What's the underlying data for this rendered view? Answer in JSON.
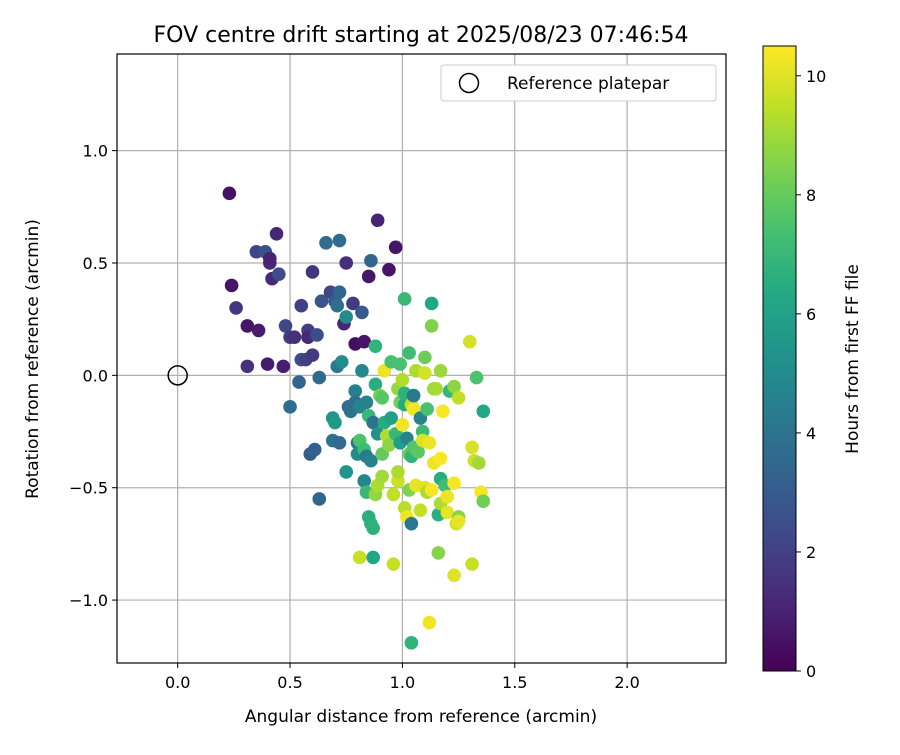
{
  "chart_data": {
    "type": "scatter",
    "title": "FOV centre drift starting at 2025/08/23 07:46:54",
    "xlabel": "Angular distance from reference (arcmin)",
    "ylabel": "Rotation from reference (arcmin)",
    "xlim": [
      -0.27,
      2.44
    ],
    "ylim": [
      -1.28,
      1.43
    ],
    "xticks": [
      0.0,
      0.5,
      1.0,
      1.5,
      2.0
    ],
    "xtick_labels": [
      "0.0",
      "0.5",
      "1.0",
      "1.5",
      "2.0"
    ],
    "yticks": [
      -1.0,
      -0.5,
      0.0,
      0.5,
      1.0
    ],
    "ytick_labels": [
      "−1.0",
      "−0.5",
      "0.0",
      "0.5",
      "1.0"
    ],
    "grid": true,
    "legend": {
      "position": "top-right",
      "entries": [
        "Reference platepar"
      ]
    },
    "reference_point": {
      "x": 0.0,
      "y": 0.0,
      "marker": "open-circle",
      "color": "#000000"
    },
    "colorbar": {
      "label": "Hours from first FF file",
      "colormap": "viridis",
      "range": [
        0,
        10.5
      ],
      "ticks": [
        0,
        2,
        4,
        6,
        8,
        10
      ],
      "tick_labels": [
        "0",
        "2",
        "4",
        "6",
        "8",
        "10"
      ]
    },
    "points": [
      {
        "x": 0.23,
        "y": 0.81,
        "h": 0.5
      },
      {
        "x": 0.24,
        "y": 0.4,
        "h": 0.6
      },
      {
        "x": 0.26,
        "y": 0.3,
        "h": 1.6
      },
      {
        "x": 0.31,
        "y": 0.22,
        "h": 0.6
      },
      {
        "x": 0.31,
        "y": 0.04,
        "h": 1.5
      },
      {
        "x": 0.35,
        "y": 0.55,
        "h": 2.1
      },
      {
        "x": 0.36,
        "y": 0.2,
        "h": 0.8
      },
      {
        "x": 0.39,
        "y": 0.55,
        "h": 2.6
      },
      {
        "x": 0.4,
        "y": 0.05,
        "h": 0.8
      },
      {
        "x": 0.41,
        "y": 0.5,
        "h": 1.2
      },
      {
        "x": 0.41,
        "y": 0.52,
        "h": 1.0
      },
      {
        "x": 0.42,
        "y": 0.43,
        "h": 1.2
      },
      {
        "x": 0.44,
        "y": 0.63,
        "h": 1.1
      },
      {
        "x": 0.45,
        "y": 0.45,
        "h": 2.4
      },
      {
        "x": 0.47,
        "y": 0.04,
        "h": 0.9
      },
      {
        "x": 0.48,
        "y": 0.22,
        "h": 2.2
      },
      {
        "x": 0.5,
        "y": 0.17,
        "h": 1.8
      },
      {
        "x": 0.5,
        "y": -0.14,
        "h": 3.7
      },
      {
        "x": 0.52,
        "y": 0.17,
        "h": 1.4
      },
      {
        "x": 0.54,
        "y": -0.03,
        "h": 3.4
      },
      {
        "x": 0.55,
        "y": 0.31,
        "h": 2.0
      },
      {
        "x": 0.55,
        "y": 0.07,
        "h": 2.6
      },
      {
        "x": 0.57,
        "y": 0.07,
        "h": 2.0
      },
      {
        "x": 0.58,
        "y": 0.2,
        "h": 1.9
      },
      {
        "x": 0.58,
        "y": 0.17,
        "h": 1.2
      },
      {
        "x": 0.59,
        "y": -0.35,
        "h": 3.0
      },
      {
        "x": 0.6,
        "y": 0.09,
        "h": 1.7
      },
      {
        "x": 0.6,
        "y": 0.46,
        "h": 1.6
      },
      {
        "x": 0.61,
        "y": -0.33,
        "h": 3.2
      },
      {
        "x": 0.62,
        "y": 0.18,
        "h": 2.5
      },
      {
        "x": 0.63,
        "y": -0.55,
        "h": 3.5
      },
      {
        "x": 0.63,
        "y": -0.01,
        "h": 3.6
      },
      {
        "x": 0.64,
        "y": 0.33,
        "h": 2.8
      },
      {
        "x": 0.66,
        "y": 0.59,
        "h": 3.7
      },
      {
        "x": 0.68,
        "y": 0.37,
        "h": 2.2
      },
      {
        "x": 0.69,
        "y": -0.19,
        "h": 5.4
      },
      {
        "x": 0.69,
        "y": -0.29,
        "h": 4.0
      },
      {
        "x": 0.7,
        "y": -0.21,
        "h": 5.6
      },
      {
        "x": 0.7,
        "y": 0.33,
        "h": 3.0
      },
      {
        "x": 0.71,
        "y": 0.31,
        "h": 3.8
      },
      {
        "x": 0.71,
        "y": 0.04,
        "h": 4.2
      },
      {
        "x": 0.72,
        "y": 0.37,
        "h": 3.5
      },
      {
        "x": 0.72,
        "y": -0.3,
        "h": 3.6
      },
      {
        "x": 0.72,
        "y": 0.6,
        "h": 3.7
      },
      {
        "x": 0.73,
        "y": 0.06,
        "h": 5.1
      },
      {
        "x": 0.74,
        "y": 0.23,
        "h": 1.1
      },
      {
        "x": 0.75,
        "y": 0.26,
        "h": 5.0
      },
      {
        "x": 0.75,
        "y": -0.43,
        "h": 5.4
      },
      {
        "x": 0.75,
        "y": 0.5,
        "h": 1.4
      },
      {
        "x": 0.76,
        "y": -0.14,
        "h": 3.7
      },
      {
        "x": 0.77,
        "y": -0.16,
        "h": 4.0
      },
      {
        "x": 0.78,
        "y": 0.32,
        "h": 1.8
      },
      {
        "x": 0.79,
        "y": -0.07,
        "h": 4.5
      },
      {
        "x": 0.79,
        "y": -0.12,
        "h": 3.8
      },
      {
        "x": 0.79,
        "y": 0.14,
        "h": 0.4
      },
      {
        "x": 0.8,
        "y": -0.3,
        "h": 4.2
      },
      {
        "x": 0.8,
        "y": -0.35,
        "h": 5.0
      },
      {
        "x": 0.81,
        "y": -0.81,
        "h": 9.6
      },
      {
        "x": 0.81,
        "y": -0.29,
        "h": 7.5
      },
      {
        "x": 0.81,
        "y": -0.14,
        "h": 4.7
      },
      {
        "x": 0.82,
        "y": 0.28,
        "h": 3.0
      },
      {
        "x": 0.82,
        "y": 0.02,
        "h": 4.8
      },
      {
        "x": 0.83,
        "y": -0.47,
        "h": 4.8
      },
      {
        "x": 0.83,
        "y": 0.15,
        "h": 0.6
      },
      {
        "x": 0.83,
        "y": -0.33,
        "h": 7.2
      },
      {
        "x": 0.84,
        "y": -0.52,
        "h": 7.0
      },
      {
        "x": 0.84,
        "y": -0.36,
        "h": 4.2
      },
      {
        "x": 0.84,
        "y": -0.12,
        "h": 4.6
      },
      {
        "x": 0.85,
        "y": -0.63,
        "h": 6.6
      },
      {
        "x": 0.85,
        "y": -0.18,
        "h": 7.0
      },
      {
        "x": 0.85,
        "y": 0.44,
        "h": 0.7
      },
      {
        "x": 0.86,
        "y": -0.66,
        "h": 6.6
      },
      {
        "x": 0.86,
        "y": 0.51,
        "h": 3.5
      },
      {
        "x": 0.86,
        "y": -0.38,
        "h": 4.6
      },
      {
        "x": 0.87,
        "y": -0.81,
        "h": 6.2
      },
      {
        "x": 0.87,
        "y": -0.68,
        "h": 6.7
      },
      {
        "x": 0.87,
        "y": -0.21,
        "h": 4.0
      },
      {
        "x": 0.88,
        "y": -0.53,
        "h": 8.8
      },
      {
        "x": 0.88,
        "y": -0.04,
        "h": 6.5
      },
      {
        "x": 0.88,
        "y": 0.13,
        "h": 6.8
      },
      {
        "x": 0.89,
        "y": 0.69,
        "h": 1.0
      },
      {
        "x": 0.89,
        "y": -0.26,
        "h": 5.3
      },
      {
        "x": 0.89,
        "y": -0.49,
        "h": 9.2
      },
      {
        "x": 0.9,
        "y": -0.09,
        "h": 8.3
      },
      {
        "x": 0.91,
        "y": -0.45,
        "h": 9.0
      },
      {
        "x": 0.91,
        "y": -0.1,
        "h": 7.7
      },
      {
        "x": 0.91,
        "y": -0.35,
        "h": 8.0
      },
      {
        "x": 0.92,
        "y": -0.21,
        "h": 6.5
      },
      {
        "x": 0.92,
        "y": 0.02,
        "h": 10.2
      },
      {
        "x": 0.93,
        "y": -0.27,
        "h": 9.3
      },
      {
        "x": 0.94,
        "y": -0.31,
        "h": 8.7
      },
      {
        "x": 0.94,
        "y": 0.47,
        "h": 0.6
      },
      {
        "x": 0.95,
        "y": 0.06,
        "h": 7.4
      },
      {
        "x": 0.95,
        "y": -0.19,
        "h": 5.9
      },
      {
        "x": 0.96,
        "y": -0.84,
        "h": 9.6
      },
      {
        "x": 0.96,
        "y": -0.53,
        "h": 9.5
      },
      {
        "x": 0.97,
        "y": -0.26,
        "h": 7.0
      },
      {
        "x": 0.97,
        "y": 0.57,
        "h": 0.6
      },
      {
        "x": 0.98,
        "y": -0.47,
        "h": 9.7
      },
      {
        "x": 0.98,
        "y": -0.43,
        "h": 9.2
      },
      {
        "x": 0.98,
        "y": -0.06,
        "h": 8.8
      },
      {
        "x": 0.99,
        "y": -0.3,
        "h": 5.9
      },
      {
        "x": 0.99,
        "y": 0.05,
        "h": 7.4
      },
      {
        "x": 0.99,
        "y": -0.12,
        "h": 8.2
      },
      {
        "x": 1.0,
        "y": -0.02,
        "h": 9.3
      },
      {
        "x": 1.0,
        "y": -0.22,
        "h": 10.3
      },
      {
        "x": 1.01,
        "y": 0.34,
        "h": 7.0
      },
      {
        "x": 1.01,
        "y": -0.59,
        "h": 9.4
      },
      {
        "x": 1.01,
        "y": -0.13,
        "h": 6.4
      },
      {
        "x": 1.01,
        "y": -0.08,
        "h": 6.7
      },
      {
        "x": 1.02,
        "y": -0.63,
        "h": 10.3
      },
      {
        "x": 1.02,
        "y": -0.28,
        "h": 4.7
      },
      {
        "x": 1.03,
        "y": -0.51,
        "h": 8.5
      },
      {
        "x": 1.03,
        "y": 0.1,
        "h": 7.2
      },
      {
        "x": 1.03,
        "y": -0.35,
        "h": 8.1
      },
      {
        "x": 1.04,
        "y": -1.19,
        "h": 6.8
      },
      {
        "x": 1.04,
        "y": -0.66,
        "h": 4.2
      },
      {
        "x": 1.04,
        "y": -0.13,
        "h": 9.5
      },
      {
        "x": 1.04,
        "y": -0.36,
        "h": 6.8
      },
      {
        "x": 1.05,
        "y": -0.15,
        "h": 10.3
      },
      {
        "x": 1.05,
        "y": -0.09,
        "h": 4.3
      },
      {
        "x": 1.05,
        "y": -0.32,
        "h": 7.6
      },
      {
        "x": 1.06,
        "y": 0.02,
        "h": 9.2
      },
      {
        "x": 1.06,
        "y": -0.49,
        "h": 10.1
      },
      {
        "x": 1.07,
        "y": -0.34,
        "h": 7.8
      },
      {
        "x": 1.08,
        "y": -0.19,
        "h": 4.7
      },
      {
        "x": 1.08,
        "y": -0.6,
        "h": 9.5
      },
      {
        "x": 1.09,
        "y": -0.25,
        "h": 7.1
      },
      {
        "x": 1.09,
        "y": -0.29,
        "h": 9.9
      },
      {
        "x": 1.1,
        "y": -0.5,
        "h": 10.0
      },
      {
        "x": 1.1,
        "y": 0.08,
        "h": 8.1
      },
      {
        "x": 1.1,
        "y": 0.01,
        "h": 9.8
      },
      {
        "x": 1.11,
        "y": -0.52,
        "h": 9.2
      },
      {
        "x": 1.11,
        "y": -0.15,
        "h": 7.4
      },
      {
        "x": 1.12,
        "y": -1.1,
        "h": 10.3
      },
      {
        "x": 1.12,
        "y": -0.3,
        "h": 10.2
      },
      {
        "x": 1.13,
        "y": 0.22,
        "h": 8.5
      },
      {
        "x": 1.13,
        "y": 0.32,
        "h": 6.2
      },
      {
        "x": 1.13,
        "y": -0.51,
        "h": 10.4
      },
      {
        "x": 1.14,
        "y": -0.06,
        "h": 8.9
      },
      {
        "x": 1.14,
        "y": -0.39,
        "h": 10.2
      },
      {
        "x": 1.15,
        "y": -0.06,
        "h": 9.1
      },
      {
        "x": 1.16,
        "y": -0.62,
        "h": 6.6
      },
      {
        "x": 1.16,
        "y": -0.79,
        "h": 8.6
      },
      {
        "x": 1.17,
        "y": 0.02,
        "h": 8.9
      },
      {
        "x": 1.17,
        "y": -0.46,
        "h": 6.5
      },
      {
        "x": 1.17,
        "y": -0.57,
        "h": 9.2
      },
      {
        "x": 1.17,
        "y": -0.37,
        "h": 10.5
      },
      {
        "x": 1.18,
        "y": -0.16,
        "h": 10.4
      },
      {
        "x": 1.19,
        "y": -0.49,
        "h": 7.2
      },
      {
        "x": 1.2,
        "y": -0.61,
        "h": 10.1
      },
      {
        "x": 1.2,
        "y": -0.54,
        "h": 10.2
      },
      {
        "x": 1.21,
        "y": -0.07,
        "h": 6.9
      },
      {
        "x": 1.23,
        "y": -0.05,
        "h": 8.7
      },
      {
        "x": 1.23,
        "y": -0.48,
        "h": 10.4
      },
      {
        "x": 1.23,
        "y": -0.89,
        "h": 10.0
      },
      {
        "x": 1.24,
        "y": -0.66,
        "h": 9.8
      },
      {
        "x": 1.25,
        "y": -0.63,
        "h": 8.6
      },
      {
        "x": 1.25,
        "y": -0.65,
        "h": 10.1
      },
      {
        "x": 1.25,
        "y": -0.1,
        "h": 9.5
      },
      {
        "x": 1.3,
        "y": 0.15,
        "h": 9.8
      },
      {
        "x": 1.31,
        "y": -0.32,
        "h": 9.9
      },
      {
        "x": 1.31,
        "y": -0.84,
        "h": 9.6
      },
      {
        "x": 1.32,
        "y": -0.38,
        "h": 9.7
      },
      {
        "x": 1.33,
        "y": -0.01,
        "h": 7.5
      },
      {
        "x": 1.34,
        "y": -0.39,
        "h": 9.0
      },
      {
        "x": 1.35,
        "y": -0.52,
        "h": 10.4
      },
      {
        "x": 1.36,
        "y": -0.16,
        "h": 6.2
      },
      {
        "x": 1.36,
        "y": -0.56,
        "h": 8.2
      }
    ]
  }
}
